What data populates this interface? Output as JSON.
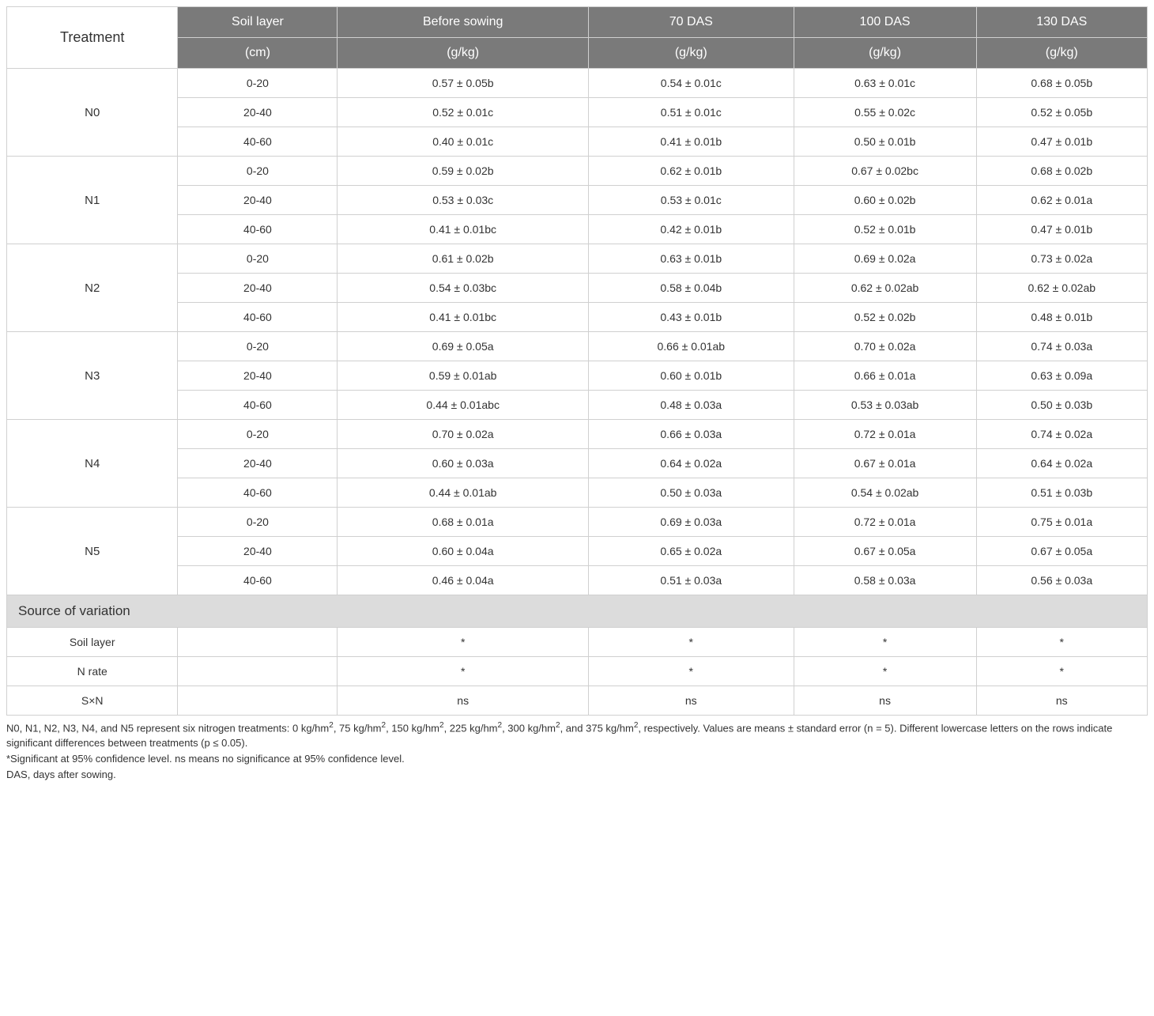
{
  "columns": {
    "treatment": "Treatment",
    "soil_layer": "Soil layer",
    "before_sowing": "Before sowing",
    "das70": "70 DAS",
    "das100": "100 DAS",
    "das130": "130 DAS",
    "unit_cm": "(cm)",
    "unit_gkg": "(g/kg)"
  },
  "col_widths": [
    "15%",
    "14%",
    "22%",
    "18%",
    "16%",
    "15%"
  ],
  "header_bg": "#7a7a7a",
  "header_fg": "#ffffff",
  "variation_bg": "#dcdcdc",
  "border_color": "#d0d0d0",
  "treatments": [
    {
      "name": "N0",
      "rows": [
        {
          "layer": "0-20",
          "before": "0.57 ± 0.05b",
          "d70": "0.54 ± 0.01c",
          "d100": "0.63 ± 0.01c",
          "d130": "0.68 ± 0.05b"
        },
        {
          "layer": "20-40",
          "before": "0.52 ± 0.01c",
          "d70": "0.51 ± 0.01c",
          "d100": "0.55 ± 0.02c",
          "d130": "0.52 ± 0.05b"
        },
        {
          "layer": "40-60",
          "before": "0.40 ± 0.01c",
          "d70": "0.41 ± 0.01b",
          "d100": "0.50 ± 0.01b",
          "d130": "0.47 ± 0.01b"
        }
      ]
    },
    {
      "name": "N1",
      "rows": [
        {
          "layer": "0-20",
          "before": "0.59 ± 0.02b",
          "d70": "0.62 ± 0.01b",
          "d100": "0.67 ± 0.02bc",
          "d130": "0.68 ± 0.02b"
        },
        {
          "layer": "20-40",
          "before": "0.53 ± 0.03c",
          "d70": "0.53 ± 0.01c",
          "d100": "0.60 ± 0.02b",
          "d130": "0.62 ± 0.01a"
        },
        {
          "layer": "40-60",
          "before": "0.41 ± 0.01bc",
          "d70": "0.42 ± 0.01b",
          "d100": "0.52 ± 0.01b",
          "d130": "0.47 ± 0.01b"
        }
      ]
    },
    {
      "name": "N2",
      "rows": [
        {
          "layer": "0-20",
          "before": "0.61 ± 0.02b",
          "d70": "0.63 ± 0.01b",
          "d100": "0.69 ± 0.02a",
          "d130": "0.73 ± 0.02a"
        },
        {
          "layer": "20-40",
          "before": "0.54 ± 0.03bc",
          "d70": "0.58 ± 0.04b",
          "d100": "0.62 ± 0.02ab",
          "d130": "0.62 ± 0.02ab"
        },
        {
          "layer": "40-60",
          "before": "0.41 ± 0.01bc",
          "d70": "0.43 ± 0.01b",
          "d100": "0.52 ± 0.02b",
          "d130": "0.48 ± 0.01b"
        }
      ]
    },
    {
      "name": "N3",
      "rows": [
        {
          "layer": "0-20",
          "before": "0.69 ± 0.05a",
          "d70": "0.66 ± 0.01ab",
          "d100": "0.70 ± 0.02a",
          "d130": "0.74 ± 0.03a"
        },
        {
          "layer": "20-40",
          "before": "0.59 ± 0.01ab",
          "d70": "0.60 ± 0.01b",
          "d100": "0.66 ± 0.01a",
          "d130": "0.63 ± 0.09a"
        },
        {
          "layer": "40-60",
          "before": "0.44 ± 0.01abc",
          "d70": "0.48 ± 0.03a",
          "d100": "0.53 ± 0.03ab",
          "d130": "0.50 ± 0.03b"
        }
      ]
    },
    {
      "name": "N4",
      "rows": [
        {
          "layer": "0-20",
          "before": "0.70 ± 0.02a",
          "d70": "0.66 ± 0.03a",
          "d100": "0.72 ± 0.01a",
          "d130": "0.74 ± 0.02a"
        },
        {
          "layer": "20-40",
          "before": "0.60 ± 0.03a",
          "d70": "0.64 ± 0.02a",
          "d100": "0.67 ± 0.01a",
          "d130": "0.64 ± 0.02a"
        },
        {
          "layer": "40-60",
          "before": "0.44 ± 0.01ab",
          "d70": "0.50 ± 0.03a",
          "d100": "0.54 ± 0.02ab",
          "d130": "0.51 ± 0.03b"
        }
      ]
    },
    {
      "name": "N5",
      "rows": [
        {
          "layer": "0-20",
          "before": "0.68 ± 0.01a",
          "d70": "0.69 ± 0.03a",
          "d100": "0.72 ± 0.01a",
          "d130": "0.75 ± 0.01a"
        },
        {
          "layer": "20-40",
          "before": "0.60 ± 0.04a",
          "d70": "0.65 ± 0.02a",
          "d100": "0.67 ± 0.05a",
          "d130": "0.67 ± 0.05a"
        },
        {
          "layer": "40-60",
          "before": "0.46 ± 0.04a",
          "d70": "0.51 ± 0.03a",
          "d100": "0.58 ± 0.03a",
          "d130": "0.56 ± 0.03a"
        }
      ]
    }
  ],
  "variation_header": "Source of variation",
  "variation_rows": [
    {
      "label": "Soil layer",
      "before": "*",
      "d70": "*",
      "d100": "*",
      "d130": "*"
    },
    {
      "label": "N rate",
      "before": "*",
      "d70": "*",
      "d100": "*",
      "d130": "*"
    },
    {
      "label": "S×N",
      "before": "ns",
      "d70": "ns",
      "d100": "ns",
      "d130": "ns"
    }
  ],
  "footnotes": [
    "N0, N1, N2, N3, N4, and N5 represent six nitrogen treatments: 0 kg/hm², 75 kg/hm², 150 kg/hm², 225 kg/hm², 300 kg/hm², and 375 kg/hm², respectively. Values are means ± standard error (n = 5). Different lowercase letters on the rows indicate significant differences between treatments (p ≤ 0.05).",
    "*Significant at 95% confidence level. ns means no significance at 95% confidence level.",
    "DAS, days after sowing."
  ]
}
